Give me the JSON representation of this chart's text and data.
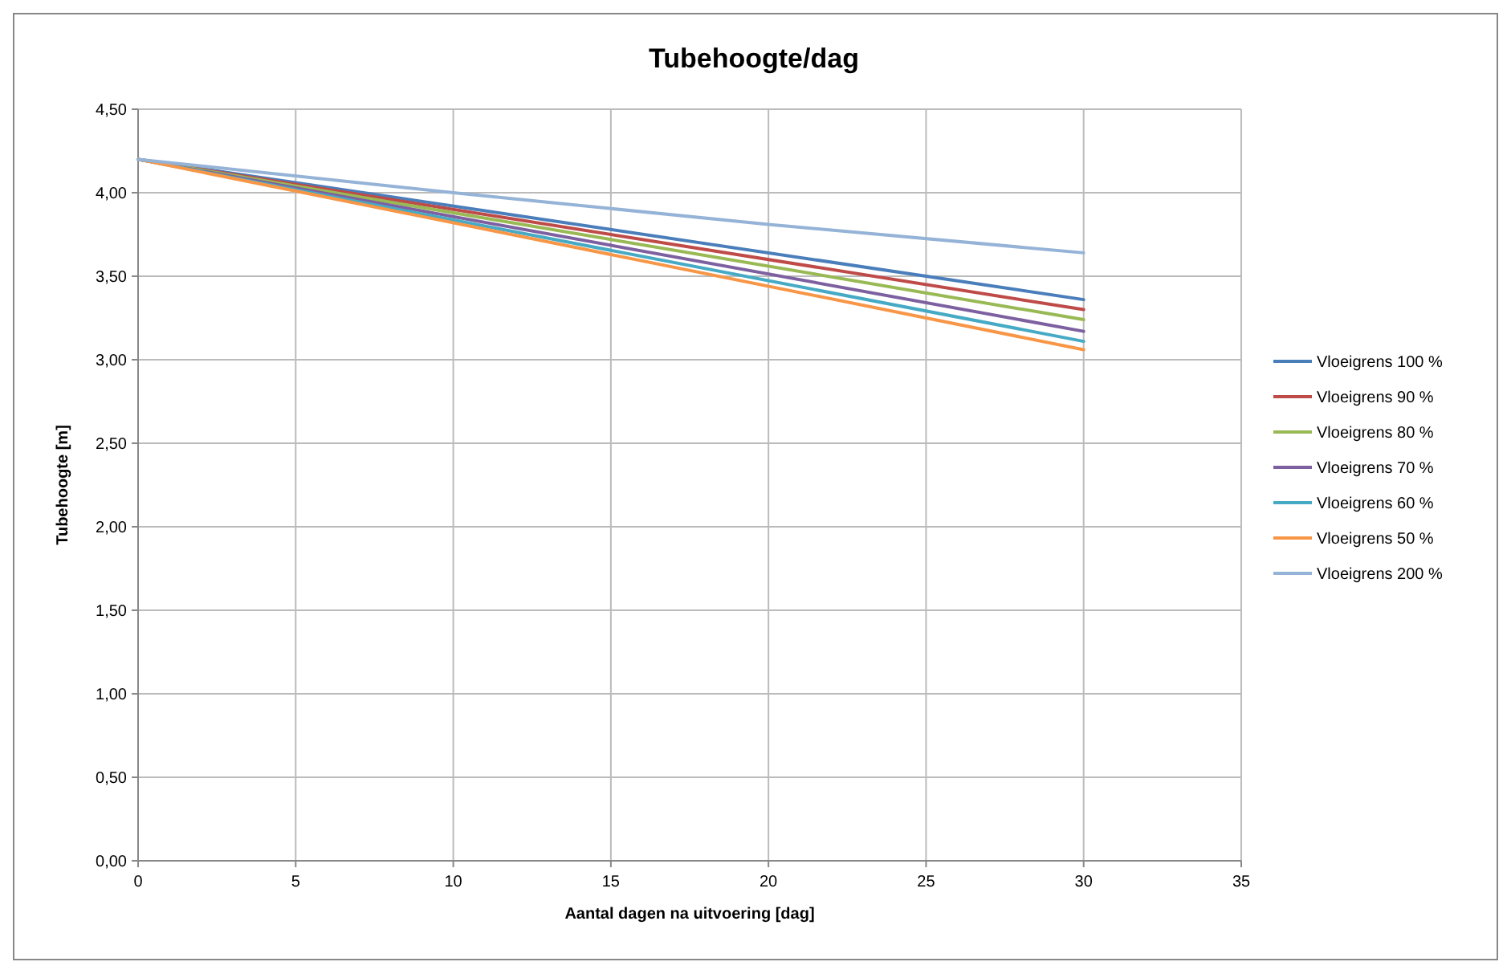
{
  "chart_data": {
    "type": "line",
    "title": "Tubehoogte/dag",
    "xlabel": "Aantal dagen na uitvoering [dag]",
    "ylabel": "Tubehoogte [m]",
    "xlim": [
      0,
      35
    ],
    "xticks": [
      0,
      5,
      10,
      15,
      20,
      25,
      30,
      35
    ],
    "ylim": [
      0,
      4.5
    ],
    "yticks": [
      {
        "value": 0,
        "label": "0,00"
      },
      {
        "value": 0.5,
        "label": "0,50"
      },
      {
        "value": 1,
        "label": "1,00"
      },
      {
        "value": 1.5,
        "label": "1,50"
      },
      {
        "value": 2,
        "label": "2,00"
      },
      {
        "value": 2.5,
        "label": "2,50"
      },
      {
        "value": 3,
        "label": "3,00"
      },
      {
        "value": 3.5,
        "label": "3,50"
      },
      {
        "value": 4,
        "label": "4,00"
      },
      {
        "value": 4.5,
        "label": "4,50"
      }
    ],
    "grid": true,
    "legend": "right",
    "x": [
      0,
      30
    ],
    "series": [
      {
        "name": "Vloeigrens 100 %",
        "color": "#4a7ebb",
        "values": [
          4.2,
          3.36
        ]
      },
      {
        "name": "Vloeigrens 90 %",
        "color": "#be4b48",
        "values": [
          4.2,
          3.3
        ]
      },
      {
        "name": "Vloeigrens 80 %",
        "color": "#98b954",
        "values": [
          4.2,
          3.24
        ]
      },
      {
        "name": "Vloeigrens 70 %",
        "color": "#7d60a0",
        "values": [
          4.2,
          3.17
        ]
      },
      {
        "name": "Vloeigrens 60 %",
        "color": "#46aac5",
        "values": [
          4.2,
          3.11
        ]
      },
      {
        "name": "Vloeigrens 50 %",
        "color": "#f79646",
        "values": [
          4.2,
          3.06
        ]
      },
      {
        "name": "Vloeigrens 200 %",
        "color": "#95b3d7",
        "x": [
          0,
          10,
          20,
          30
        ],
        "values": [
          4.2,
          4.0,
          3.81,
          3.64
        ]
      }
    ]
  }
}
